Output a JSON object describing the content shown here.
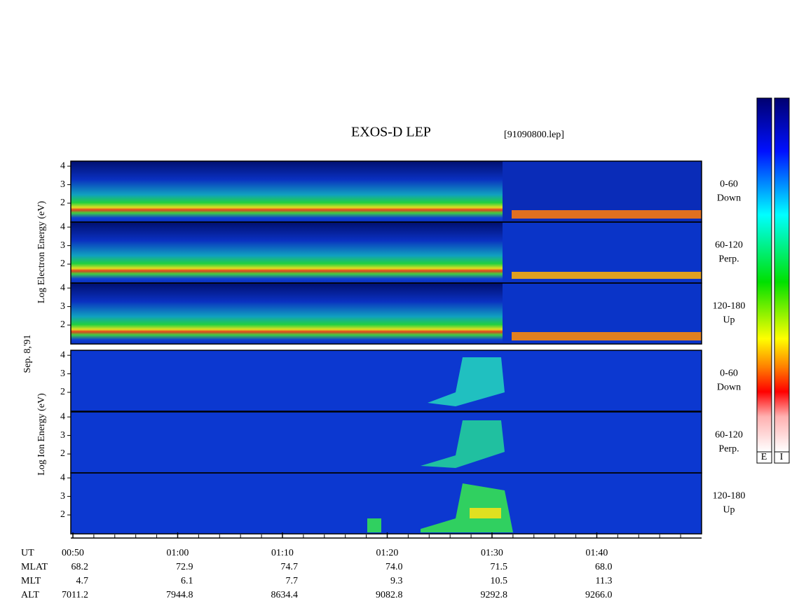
{
  "chart_data": {
    "type": "spectrogram",
    "title": "EXOS-D LEP",
    "file": "[91090800.lep]",
    "date": "Sep. 8,'91",
    "xlim": [
      49.8,
      110
    ],
    "xticks": [
      {
        "value": 50,
        "label": "00:50"
      },
      {
        "value": 60,
        "label": "01:00"
      },
      {
        "value": 70,
        "label": "01:10"
      },
      {
        "value": 80,
        "label": "01:20"
      },
      {
        "value": 90,
        "label": "01:30"
      },
      {
        "value": 100,
        "label": "01:40"
      }
    ],
    "xminorticks": [
      52,
      54,
      56,
      58,
      62,
      64,
      66,
      68,
      72,
      74,
      76,
      78,
      82,
      84,
      86,
      88,
      92,
      94,
      96,
      98,
      102,
      104,
      106,
      108
    ],
    "ylim": [
      0.98,
      4.27
    ],
    "yticks": [
      2,
      3,
      4
    ],
    "groups": [
      {
        "ylabel": "Log Electron Energy (eV)",
        "panels": [
          [
            "0-60",
            "Down"
          ],
          [
            "60-120",
            "Perp."
          ],
          [
            "120-180",
            "Up"
          ]
        ]
      },
      {
        "ylabel": "Log Ion Energy (eV)",
        "panels": [
          [
            "0-60",
            "Down"
          ],
          [
            "60-120",
            "Perp."
          ],
          [
            "120-180",
            "Up"
          ]
        ]
      }
    ],
    "colorbar_labels": [
      "E",
      "I"
    ],
    "ephemeris": {
      "x_label": "UT",
      "rows": [
        {
          "label": "MLAT",
          "values": [
            "68.2",
            "72.9",
            "74.7",
            "74.0",
            "71.5",
            "68.0"
          ]
        },
        {
          "label": "MLT",
          "values": [
            "4.7",
            "6.1",
            "7.7",
            "9.3",
            "10.5",
            "11.3"
          ]
        },
        {
          "label": "ALT",
          "values": [
            "7011.2",
            "7944.8",
            "8634.4",
            "9082.8",
            "9292.8",
            "9266.0"
          ]
        }
      ]
    }
  }
}
